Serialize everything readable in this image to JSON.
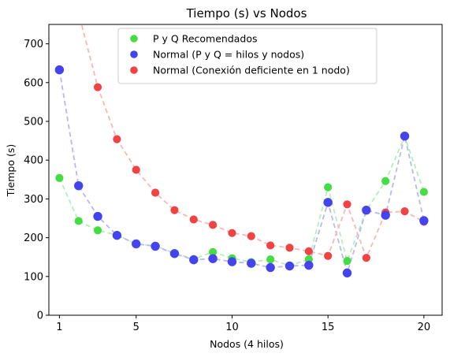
{
  "chart_data": {
    "type": "line",
    "title": "Tiempo (s) vs Nodos",
    "xlabel": "Nodos (4 hilos)",
    "ylabel": "Tiempo (s)",
    "xlim": [
      0.45,
      20.95
    ],
    "ylim": [
      0,
      750
    ],
    "xticks": [
      1,
      5,
      10,
      15,
      20
    ],
    "yticks": [
      0,
      100,
      200,
      300,
      400,
      500,
      600,
      700
    ],
    "grid": false,
    "legend_position": "upper-center",
    "series": [
      {
        "name": "P y Q Recomendados",
        "color": "#44dd44",
        "line_color": "#b6efb6",
        "marker_edge": "#44dd44",
        "x": [
          1,
          2,
          3,
          4,
          5,
          6,
          7,
          8,
          9,
          10,
          11,
          12,
          13,
          14,
          15,
          16,
          17,
          18,
          19,
          20
        ],
        "y": [
          354,
          243,
          219,
          207,
          184,
          179,
          160,
          145,
          163,
          147,
          137,
          144,
          128,
          144,
          330,
          140,
          271,
          346,
          461,
          318
        ]
      },
      {
        "name": "Normal (P y Q = hilos y nodos)",
        "color": "#4444ee",
        "line_color": "#b8b8f5",
        "marker_edge": "#4444ee",
        "x": [
          1,
          2,
          3,
          4,
          5,
          6,
          7,
          8,
          9,
          10,
          11,
          12,
          13,
          14,
          15,
          16,
          17,
          18,
          19,
          20
        ],
        "y": [
          633,
          334,
          255,
          206,
          184,
          178,
          159,
          143,
          146,
          138,
          134,
          123,
          127,
          129,
          291,
          109,
          271,
          258,
          462,
          244
        ]
      },
      {
        "name": "Normal (Conexión deficiente en 1 nodo)",
        "color": "#f04444",
        "line_color": "#f8b8b8",
        "marker_edge": "#f04444",
        "x": [
          1,
          2,
          3,
          4,
          5,
          6,
          7,
          8,
          9,
          10,
          11,
          12,
          13,
          14,
          15,
          16,
          17,
          18,
          19,
          20
        ],
        "y": [
          null,
          null,
          588,
          454,
          375,
          316,
          271,
          247,
          233,
          212,
          204,
          180,
          174,
          165,
          153,
          286,
          148,
          265,
          268,
          241
        ],
        "line_extension_y": [
          1150,
          780
        ]
      }
    ]
  }
}
